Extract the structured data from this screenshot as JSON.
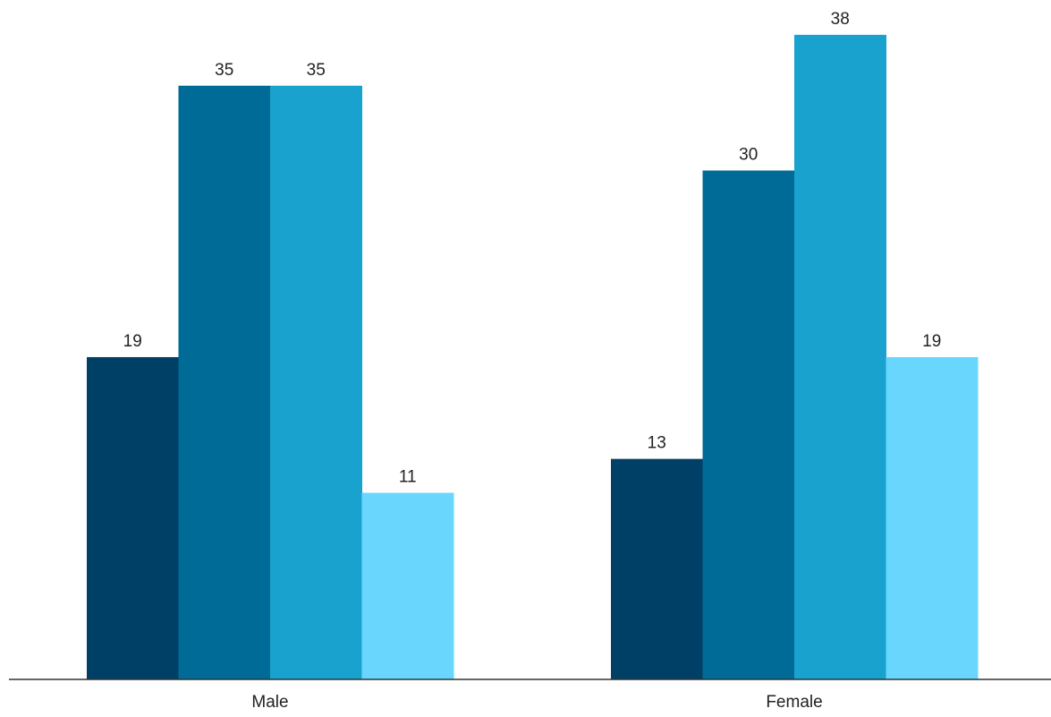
{
  "chart_data": {
    "type": "bar",
    "categories": [
      "Male",
      "Female"
    ],
    "series": [
      {
        "values": [
          19,
          13
        ],
        "color": "#003f66"
      },
      {
        "values": [
          35,
          30
        ],
        "color": "#006b96"
      },
      {
        "values": [
          35,
          38
        ],
        "color": "#1aa2ce"
      },
      {
        "values": [
          11,
          19
        ],
        "color": "#69d7fd"
      }
    ],
    "title": "",
    "xlabel": "",
    "ylabel": "",
    "ylim": [
      0,
      40
    ],
    "grid": false,
    "legend": "none",
    "data_labels": true
  }
}
